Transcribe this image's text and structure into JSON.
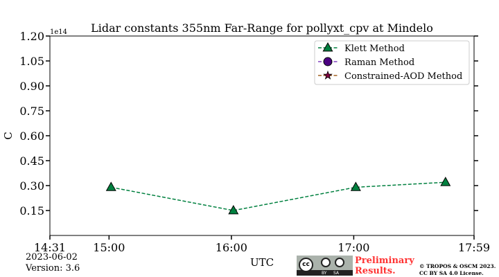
{
  "chart_data": {
    "type": "line",
    "title": "Lidar constants 355nm Far-Range for pollyxt_cpv at Mindelo",
    "xlabel": "UTC",
    "ylabel": "C",
    "y_multiplier": "1e14",
    "xlim": [
      "14:31",
      "17:59"
    ],
    "ylim": [
      0,
      1.2
    ],
    "x_ticks": [
      "14:31",
      "15:00",
      "16:00",
      "17:00",
      "17:59"
    ],
    "y_ticks": [
      "0.15",
      "0.30",
      "0.45",
      "0.60",
      "0.75",
      "0.90",
      "1.05",
      "1.20"
    ],
    "grid": false,
    "legend_position": "top-right",
    "series": [
      {
        "name": "Klett Method",
        "color": "#00803f",
        "line_color": "#00803f",
        "marker": "triangle",
        "x": [
          "15:01",
          "16:01",
          "17:01",
          "17:45"
        ],
        "values": [
          0.29,
          0.15,
          0.29,
          0.32
        ]
      },
      {
        "name": "Raman Method",
        "color": "#4b0082",
        "line_color": "#8040c0",
        "marker": "circle",
        "x": [],
        "values": []
      },
      {
        "name": "Constrained-AOD Method",
        "color": "#800040",
        "line_color": "#a06020",
        "marker": "star",
        "x": [],
        "values": []
      }
    ]
  },
  "footer": {
    "date": "2023-06-02",
    "version": "Version: 3.6",
    "preliminary": "Preliminary Results.",
    "copyright_line1": "© TROPOS & OSCM 2023.",
    "copyright_line2": "CC BY SA 4.0 License.",
    "license_badge": "cc BY SA"
  }
}
